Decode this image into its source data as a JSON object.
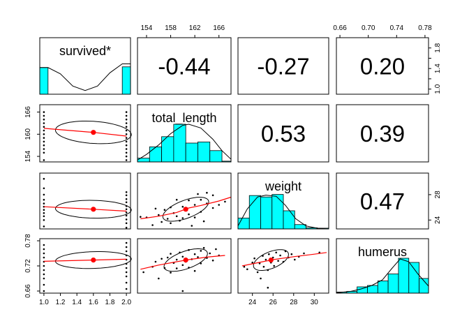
{
  "chart_data": {
    "type": "scatter-matrix",
    "title": "",
    "variables": [
      "survived*",
      "total_length",
      "weight",
      "humerus"
    ],
    "colors": {
      "hist_fill": "#00FFFF",
      "fit_line": "#FF0000",
      "point_color": "#000000",
      "mean_point": "#FF0000",
      "frame": "#000000"
    },
    "axes": {
      "survived*": {
        "range": [
          0.95,
          2.05
        ],
        "ticks": [
          "1.0",
          "1.2",
          "1.4",
          "1.6",
          "1.8",
          "2.0"
        ],
        "tick_values": [
          1.0,
          1.2,
          1.4,
          1.6,
          1.8,
          2.0
        ]
      },
      "total_length": {
        "range": [
          152.5,
          168
        ],
        "ticks": [
          "154",
          "158",
          "162",
          "166"
        ],
        "tick_values": [
          154,
          158,
          162,
          166
        ],
        "ticks_y": [
          "154",
          "160",
          "166"
        ],
        "tick_values_y": [
          154,
          160,
          166
        ]
      },
      "weight": {
        "range": [
          22.6,
          31.4
        ],
        "ticks": [
          "24",
          "26",
          "28",
          "30"
        ],
        "tick_values": [
          24,
          26,
          28,
          30
        ],
        "ticks_y": [
          "24",
          "28"
        ],
        "tick_values_y": [
          24,
          28
        ]
      },
      "humerus": {
        "range": [
          0.655,
          0.785
        ],
        "ticks": [
          "0.66",
          "0.70",
          "0.74",
          "0.78"
        ],
        "tick_values": [
          0.66,
          0.7,
          0.74,
          0.78
        ],
        "ticks_y": [
          "0.66",
          "0.72",
          "0.78"
        ],
        "tick_values_y": [
          0.66,
          0.72,
          0.78
        ]
      }
    },
    "right_axis_survived": {
      "range": [
        0.9,
        2.0
      ],
      "ticks": [
        "1.0",
        "1.4",
        "1.8"
      ],
      "tick_values": [
        1.0,
        1.4,
        1.8
      ],
      "minor_values": [
        1.2,
        1.6
      ]
    },
    "correlations": [
      {
        "row": 0,
        "col": 1,
        "text": "-0.44"
      },
      {
        "row": 0,
        "col": 2,
        "text": "-0.27"
      },
      {
        "row": 0,
        "col": 3,
        "text": "0.20"
      },
      {
        "row": 1,
        "col": 2,
        "text": "0.53"
      },
      {
        "row": 1,
        "col": 3,
        "text": "0.39"
      },
      {
        "row": 2,
        "col": 3,
        "text": "0.47"
      }
    ],
    "histograms": {
      "survived*": {
        "bins": [
          0.95,
          1.05,
          1.95,
          2.05
        ],
        "heights": [
          0.72,
          0,
          0.74
        ],
        "density": [
          [
            0.95,
            0.72
          ],
          [
            1.05,
            0.72
          ],
          [
            1.2,
            0.55
          ],
          [
            1.35,
            0.22
          ],
          [
            1.5,
            0.1
          ],
          [
            1.65,
            0.22
          ],
          [
            1.8,
            0.58
          ],
          [
            1.95,
            0.82
          ],
          [
            2.05,
            0.82
          ]
        ]
      },
      "total_length": {
        "bins": [
          152.5,
          154.5,
          156.5,
          158.5,
          160.5,
          162.5,
          164.5,
          166.5,
          168
        ],
        "heights": [
          0.1,
          0.4,
          0.67,
          1.0,
          0.5,
          0.53,
          0.3,
          0.02
        ],
        "density": [
          [
            152.5,
            0.05
          ],
          [
            154,
            0.2
          ],
          [
            156,
            0.45
          ],
          [
            158,
            0.75
          ],
          [
            160,
            0.97
          ],
          [
            161,
            1.0
          ],
          [
            163,
            0.9
          ],
          [
            165,
            0.6
          ],
          [
            166.5,
            0.3
          ],
          [
            168,
            0.07
          ]
        ]
      },
      "weight": {
        "bins": [
          22.6,
          23.7,
          24.8,
          25.9,
          27.0,
          28.1,
          29.2,
          30.3,
          31.4
        ],
        "heights": [
          0.3,
          0.92,
          0.88,
          0.95,
          0.5,
          0.12,
          0.03,
          0.02
        ],
        "density": [
          [
            22.6,
            0.08
          ],
          [
            23.5,
            0.55
          ],
          [
            24.5,
            0.88
          ],
          [
            25.3,
            0.93
          ],
          [
            26.3,
            0.9
          ],
          [
            27.2,
            0.65
          ],
          [
            28.2,
            0.28
          ],
          [
            29.2,
            0.08
          ],
          [
            30.3,
            0.02
          ],
          [
            31.4,
            0.0
          ]
        ]
      },
      "humerus": {
        "bins": [
          0.655,
          0.6696,
          0.6842,
          0.6988,
          0.7134,
          0.728,
          0.7426,
          0.7572,
          0.7718,
          0.785
        ],
        "heights": [
          0.03,
          0.05,
          0.18,
          0.22,
          0.35,
          0.55,
          1.0,
          0.88,
          0.42
        ],
        "density": [
          [
            0.655,
            0.01
          ],
          [
            0.675,
            0.05
          ],
          [
            0.69,
            0.12
          ],
          [
            0.705,
            0.22
          ],
          [
            0.72,
            0.38
          ],
          [
            0.733,
            0.7
          ],
          [
            0.745,
            0.98
          ],
          [
            0.757,
            0.9
          ],
          [
            0.77,
            0.55
          ],
          [
            0.785,
            0.2
          ]
        ]
      }
    },
    "panels": [
      {
        "row": 1,
        "col": 0,
        "x": "survived*",
        "y": "total_length",
        "mean": [
          1.6,
          160.5
        ],
        "fit": [
          [
            1.0,
            161.6
          ],
          [
            1.6,
            160.5
          ],
          [
            2.0,
            159.5
          ]
        ],
        "ellipse": {
          "rx": 0.46,
          "ry": 3.0,
          "tilt": -0.06
        },
        "points": [
          [
            1,
            153
          ],
          [
            1,
            155
          ],
          [
            1,
            156
          ],
          [
            1,
            157
          ],
          [
            1,
            158
          ],
          [
            1,
            159
          ],
          [
            1,
            160
          ],
          [
            1,
            161
          ],
          [
            1,
            162
          ],
          [
            1,
            163
          ],
          [
            1,
            164
          ],
          [
            1,
            165
          ],
          [
            1,
            166
          ],
          [
            2,
            153
          ],
          [
            2,
            154
          ],
          [
            2,
            155
          ],
          [
            2,
            156
          ],
          [
            2,
            157
          ],
          [
            2,
            158
          ],
          [
            2,
            159
          ],
          [
            2,
            160
          ],
          [
            2,
            161
          ],
          [
            2,
            162
          ],
          [
            2,
            163
          ],
          [
            2,
            164
          ],
          [
            2,
            165
          ],
          [
            2,
            166
          ]
        ]
      },
      {
        "row": 2,
        "col": 0,
        "x": "survived*",
        "y": "weight",
        "mean": [
          1.6,
          25.7
        ],
        "fit": [
          [
            1.0,
            26.1
          ],
          [
            1.6,
            25.7
          ],
          [
            2.0,
            25.4
          ]
        ],
        "ellipse": {
          "rx": 0.46,
          "ry": 1.4,
          "tilt": -0.02
        },
        "points": [
          [
            1,
            23.0
          ],
          [
            1,
            24.0
          ],
          [
            1,
            24.6
          ],
          [
            1,
            25.1
          ],
          [
            1,
            25.6
          ],
          [
            1,
            26.1
          ],
          [
            1,
            26.6
          ],
          [
            1,
            27.2
          ],
          [
            1,
            28.0
          ],
          [
            1,
            29.0
          ],
          [
            1,
            30.5
          ],
          [
            2,
            22.8
          ],
          [
            2,
            23.5
          ],
          [
            2,
            24.1
          ],
          [
            2,
            24.7
          ],
          [
            2,
            25.2
          ],
          [
            2,
            25.7
          ],
          [
            2,
            26.2
          ],
          [
            2,
            26.8
          ],
          [
            2,
            27.3
          ],
          [
            2,
            27.9
          ],
          [
            2,
            28.4
          ]
        ]
      },
      {
        "row": 2,
        "col": 1,
        "x": "total_length",
        "y": "weight",
        "mean": [
          160.5,
          25.7
        ],
        "fit": [
          [
            153,
            24.2
          ],
          [
            156,
            24.6
          ],
          [
            159,
            25.2
          ],
          [
            161,
            25.9
          ],
          [
            163,
            26.3
          ],
          [
            166,
            27.0
          ],
          [
            168,
            27.6
          ]
        ],
        "ellipse": {
          "rx": 3.8,
          "ry": 1.5,
          "tilt": 0.32
        },
        "points": [
          [
            153,
            24.5
          ],
          [
            154,
            24.4
          ],
          [
            155,
            23.2
          ],
          [
            155.5,
            25.8
          ],
          [
            156,
            24.8
          ],
          [
            156.5,
            23.7
          ],
          [
            157,
            25.6
          ],
          [
            157.5,
            24.2
          ],
          [
            158,
            26.0
          ],
          [
            158,
            23.5
          ],
          [
            158.5,
            25.1
          ],
          [
            159,
            24.6
          ],
          [
            159,
            27.2
          ],
          [
            159.5,
            23.9
          ],
          [
            160,
            26.1
          ],
          [
            160,
            24.3
          ],
          [
            160.5,
            25.5
          ],
          [
            161,
            27.1
          ],
          [
            161,
            24.9
          ],
          [
            161.5,
            23.1
          ],
          [
            162,
            26.4
          ],
          [
            162,
            24.4
          ],
          [
            162.5,
            28.1
          ],
          [
            163,
            25.3
          ],
          [
            163,
            27.2
          ],
          [
            163.5,
            23.8
          ],
          [
            164,
            26.6
          ],
          [
            164,
            28.3
          ],
          [
            165,
            25.9
          ],
          [
            165,
            27.9
          ],
          [
            166,
            26.4
          ],
          [
            167,
            26.9
          ]
        ]
      },
      {
        "row": 3,
        "col": 0,
        "x": "survived*",
        "y": "humerus",
        "mean": [
          1.6,
          0.734
        ],
        "fit": [
          [
            1.0,
            0.731
          ],
          [
            1.6,
            0.734
          ],
          [
            2.0,
            0.736
          ]
        ],
        "ellipse": {
          "rx": 0.46,
          "ry": 0.02,
          "tilt": 0.03
        },
        "points": [
          [
            1,
            0.66
          ],
          [
            1,
            0.675
          ],
          [
            1,
            0.69
          ],
          [
            1,
            0.7
          ],
          [
            1,
            0.71
          ],
          [
            1,
            0.72
          ],
          [
            1,
            0.73
          ],
          [
            1,
            0.74
          ],
          [
            1,
            0.75
          ],
          [
            1,
            0.76
          ],
          [
            1,
            0.77
          ],
          [
            2,
            0.665
          ],
          [
            2,
            0.68
          ],
          [
            2,
            0.695
          ],
          [
            2,
            0.705
          ],
          [
            2,
            0.715
          ],
          [
            2,
            0.725
          ],
          [
            2,
            0.735
          ],
          [
            2,
            0.745
          ],
          [
            2,
            0.755
          ],
          [
            2,
            0.765
          ],
          [
            2,
            0.775
          ]
        ]
      },
      {
        "row": 3,
        "col": 1,
        "x": "total_length",
        "y": "humerus",
        "mean": [
          160.5,
          0.734
        ],
        "fit": [
          [
            153,
            0.712
          ],
          [
            156,
            0.722
          ],
          [
            159,
            0.73
          ],
          [
            161,
            0.735
          ],
          [
            164,
            0.741
          ],
          [
            167,
            0.745
          ]
        ],
        "ellipse": {
          "rx": 3.6,
          "ry": 0.022,
          "tilt": 0.3
        },
        "points": [
          [
            153.5,
            0.705
          ],
          [
            155,
            0.718
          ],
          [
            155.5,
            0.73
          ],
          [
            156,
            0.69
          ],
          [
            156.5,
            0.737
          ],
          [
            157,
            0.715
          ],
          [
            157.5,
            0.74
          ],
          [
            158,
            0.704
          ],
          [
            158,
            0.749
          ],
          [
            158.5,
            0.727
          ],
          [
            159,
            0.735
          ],
          [
            159,
            0.714
          ],
          [
            159.5,
            0.752
          ],
          [
            160,
            0.722
          ],
          [
            160,
            0.742
          ],
          [
            160.5,
            0.73
          ],
          [
            161,
            0.758
          ],
          [
            161,
            0.716
          ],
          [
            161.5,
            0.736
          ],
          [
            162,
            0.748
          ],
          [
            162,
            0.708
          ],
          [
            162.5,
            0.741
          ],
          [
            163,
            0.756
          ],
          [
            163,
            0.726
          ],
          [
            163.5,
            0.763
          ],
          [
            164,
            0.739
          ],
          [
            164.5,
            0.75
          ],
          [
            165,
            0.733
          ],
          [
            165.5,
            0.76
          ],
          [
            166,
            0.745
          ],
          [
            160,
            0.66
          ]
        ]
      },
      {
        "row": 3,
        "col": 2,
        "x": "weight",
        "y": "humerus",
        "mean": [
          25.8,
          0.734
        ],
        "fit": [
          [
            23.0,
            0.72
          ],
          [
            25.0,
            0.73
          ],
          [
            26.0,
            0.735
          ],
          [
            28.0,
            0.742
          ],
          [
            30.0,
            0.748
          ],
          [
            31.2,
            0.752
          ]
        ],
        "ellipse": {
          "rx": 1.7,
          "ry": 0.021,
          "tilt": 0.32
        },
        "points": [
          [
            23.2,
            0.718
          ],
          [
            23.5,
            0.712
          ],
          [
            24.0,
            0.728
          ],
          [
            24.2,
            0.738
          ],
          [
            24.5,
            0.705
          ],
          [
            24.7,
            0.726
          ],
          [
            25.0,
            0.744
          ],
          [
            25.1,
            0.718
          ],
          [
            25.3,
            0.735
          ],
          [
            25.5,
            0.71
          ],
          [
            25.6,
            0.748
          ],
          [
            25.8,
            0.728
          ],
          [
            26.0,
            0.74
          ],
          [
            26.1,
            0.72
          ],
          [
            26.3,
            0.752
          ],
          [
            26.5,
            0.732
          ],
          [
            26.7,
            0.745
          ],
          [
            27.0,
            0.73
          ],
          [
            27.2,
            0.755
          ],
          [
            27.5,
            0.74
          ],
          [
            27.8,
            0.748
          ],
          [
            28.1,
            0.735
          ],
          [
            28.5,
            0.742
          ],
          [
            29.0,
            0.75
          ],
          [
            30.5,
            0.752
          ],
          [
            25.5,
            0.668
          ],
          [
            24.8,
            0.69
          ]
        ]
      }
    ]
  }
}
